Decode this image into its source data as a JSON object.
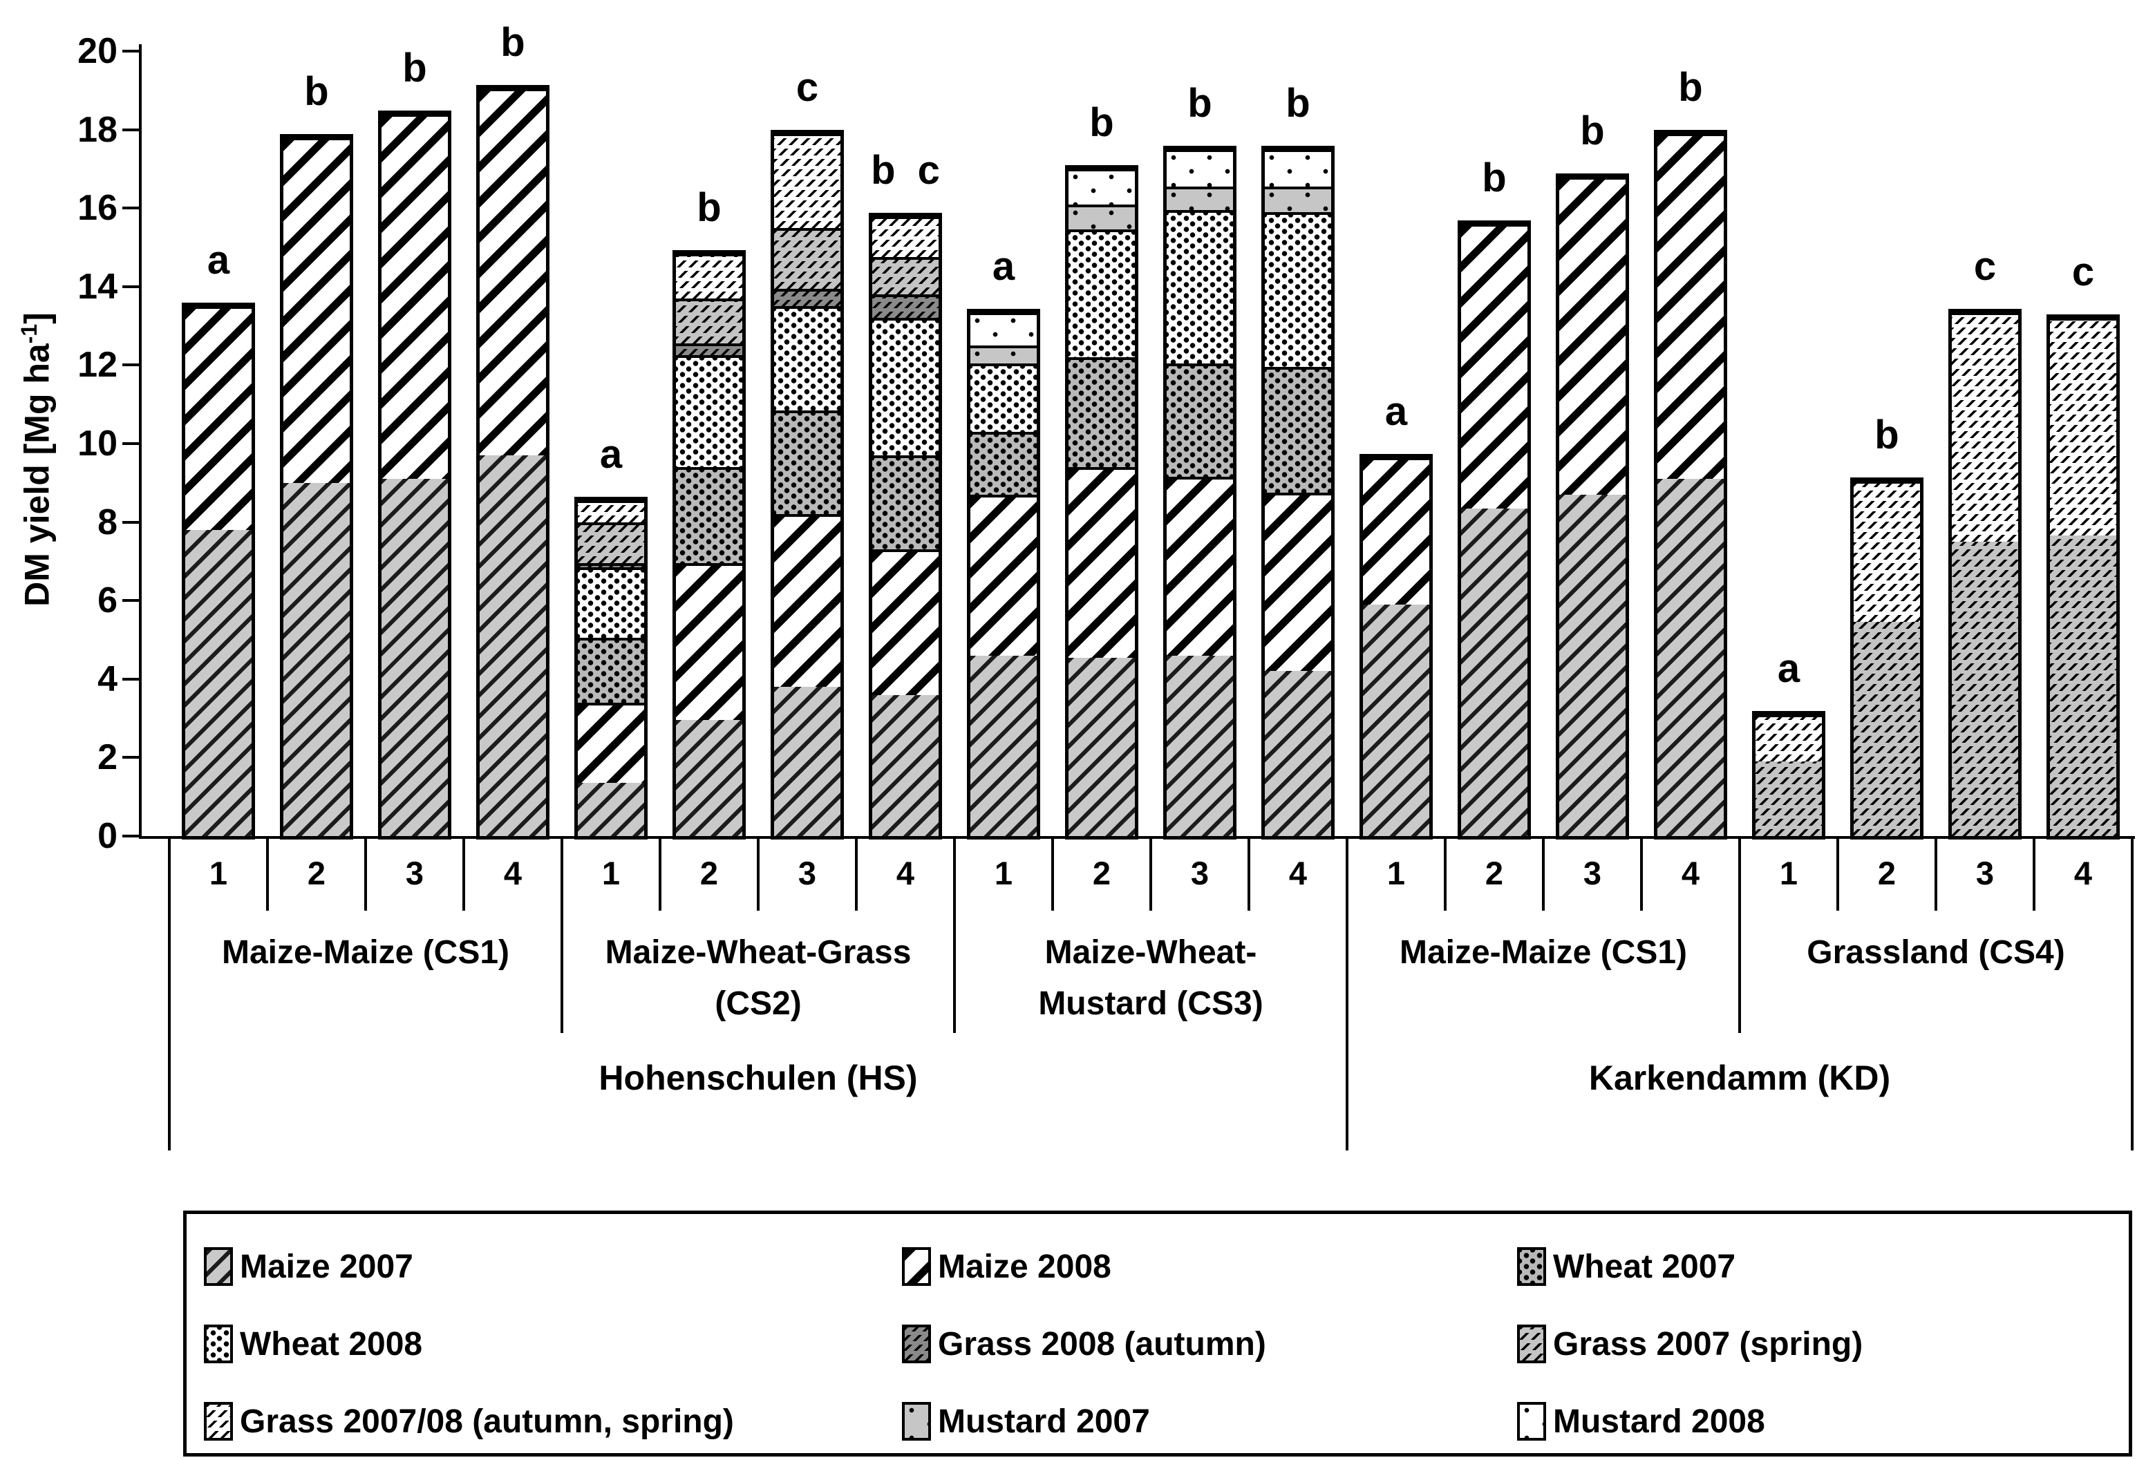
{
  "y_axis": {
    "title_main": "DM yield [Mg ha",
    "title_sup": "-1",
    "title_end": "]",
    "min": 0,
    "max": 20,
    "tick_step": 2,
    "ticks": [
      0,
      2,
      4,
      6,
      8,
      10,
      12,
      14,
      16,
      18,
      20
    ]
  },
  "x_axis": {
    "n_levels": [
      "1",
      "2",
      "3",
      "4"
    ],
    "sites": [
      {
        "label": "Hohenschulen (HS)",
        "group_indexes": [
          0,
          1,
          2
        ]
      },
      {
        "label": "Karkendamm (KD)",
        "group_indexes": [
          3,
          4
        ]
      }
    ]
  },
  "series_legend": [
    {
      "key": "maize2007",
      "label": "Maize 2007"
    },
    {
      "key": "maize2008",
      "label": "Maize 2008"
    },
    {
      "key": "wheat2007",
      "label": "Wheat 2007"
    },
    {
      "key": "wheat2008",
      "label": "Wheat 2008"
    },
    {
      "key": "grass2008autumn",
      "label": "Grass 2008 (autumn)"
    },
    {
      "key": "grass2007spring",
      "label": "Grass 2007 (spring)"
    },
    {
      "key": "grass200708",
      "label": "Grass 2007/08 (autumn, spring)"
    },
    {
      "key": "mustard2007",
      "label": "Mustard 2007"
    },
    {
      "key": "mustard2008",
      "label": "Mustard 2008"
    }
  ],
  "colors": {
    "bar_outline": "#000000",
    "gray_fill": "#c9c9c9",
    "mid_gray_fill": "#c4c4c4",
    "dark_gray_fill": "#8a8a8a",
    "background": "#ffffff"
  },
  "chart_data": {
    "type": "bar",
    "stacked": true,
    "title": "",
    "xlabel": "",
    "ylabel": "DM yield [Mg ha-1]",
    "ylim": [
      0,
      20
    ],
    "grid": false,
    "legend_position": "bottom",
    "groups": [
      {
        "id": "HS-CS1",
        "label_lines": [
          "Maize-Maize (CS1)"
        ],
        "site": "Hohenschulen (HS)",
        "bars": [
          {
            "n": "1",
            "letter": "a",
            "total": 13.5,
            "segments": [
              {
                "series": "maize2007",
                "value": 7.8
              },
              {
                "series": "maize2008",
                "value": 5.7
              }
            ]
          },
          {
            "n": "2",
            "letter": "b",
            "total": 17.8,
            "segments": [
              {
                "series": "maize2007",
                "value": 9.0
              },
              {
                "series": "maize2008",
                "value": 8.8
              }
            ]
          },
          {
            "n": "3",
            "letter": "b",
            "total": 18.4,
            "segments": [
              {
                "series": "maize2007",
                "value": 9.1
              },
              {
                "series": "maize2008",
                "value": 9.3
              }
            ]
          },
          {
            "n": "4",
            "letter": "b",
            "total": 19.05,
            "segments": [
              {
                "series": "maize2007",
                "value": 9.7
              },
              {
                "series": "maize2008",
                "value": 9.35
              }
            ]
          }
        ]
      },
      {
        "id": "HS-CS2",
        "label_lines": [
          "Maize-Wheat-Grass",
          "(CS2)"
        ],
        "site": "Hohenschulen (HS)",
        "bars": [
          {
            "n": "1",
            "letter": "a",
            "total": 8.55,
            "segments": [
              {
                "series": "maize2007",
                "value": 1.35
              },
              {
                "series": "maize2008",
                "value": 2.05
              },
              {
                "series": "wheat2007",
                "value": 1.65
              },
              {
                "series": "wheat2008",
                "value": 1.8
              },
              {
                "series": "grass2008autumn",
                "value": 0.1
              },
              {
                "series": "grass2007spring",
                "value": 1.05
              },
              {
                "series": "grass200708",
                "value": 0.55
              }
            ]
          },
          {
            "n": "2",
            "letter": "b",
            "total": 14.85,
            "segments": [
              {
                "series": "maize2007",
                "value": 2.95
              },
              {
                "series": "maize2008",
                "value": 4.0
              },
              {
                "series": "wheat2007",
                "value": 2.45
              },
              {
                "series": "wheat2008",
                "value": 2.85
              },
              {
                "series": "grass2008autumn",
                "value": 0.3
              },
              {
                "series": "grass2007spring",
                "value": 1.15
              },
              {
                "series": "grass200708",
                "value": 1.15
              }
            ]
          },
          {
            "n": "3",
            "letter": "c",
            "total": 17.9,
            "segments": [
              {
                "series": "maize2007",
                "value": 3.8
              },
              {
                "series": "maize2008",
                "value": 4.4
              },
              {
                "series": "wheat2007",
                "value": 2.65
              },
              {
                "series": "wheat2008",
                "value": 2.65
              },
              {
                "series": "grass2008autumn",
                "value": 0.45
              },
              {
                "series": "grass2007spring",
                "value": 1.55
              },
              {
                "series": "grass200708",
                "value": 2.4
              }
            ]
          },
          {
            "n": "4",
            "letter": "b c",
            "total": 15.8,
            "segments": [
              {
                "series": "maize2007",
                "value": 3.6
              },
              {
                "series": "maize2008",
                "value": 3.7
              },
              {
                "series": "wheat2007",
                "value": 2.4
              },
              {
                "series": "wheat2008",
                "value": 3.5
              },
              {
                "series": "grass2008autumn",
                "value": 0.6
              },
              {
                "series": "grass2007spring",
                "value": 0.95
              },
              {
                "series": "grass200708",
                "value": 1.05
              }
            ]
          }
        ]
      },
      {
        "id": "HS-CS3",
        "label_lines": [
          "Maize-Wheat-",
          "Mustard (CS3)"
        ],
        "site": "Hohenschulen (HS)",
        "bars": [
          {
            "n": "1",
            "letter": "a",
            "total": 13.35,
            "segments": [
              {
                "series": "maize2007",
                "value": 4.6
              },
              {
                "series": "maize2008",
                "value": 4.1
              },
              {
                "series": "wheat2007",
                "value": 1.6
              },
              {
                "series": "wheat2008",
                "value": 1.75
              },
              {
                "series": "mustard2007",
                "value": 0.45
              },
              {
                "series": "mustard2008",
                "value": 0.85
              }
            ]
          },
          {
            "n": "2",
            "letter": "b",
            "total": 17.0,
            "segments": [
              {
                "series": "maize2007",
                "value": 4.55
              },
              {
                "series": "maize2008",
                "value": 4.85
              },
              {
                "series": "wheat2007",
                "value": 2.8
              },
              {
                "series": "wheat2008",
                "value": 3.25
              },
              {
                "series": "mustard2007",
                "value": 0.65
              },
              {
                "series": "mustard2008",
                "value": 0.9
              }
            ]
          },
          {
            "n": "3",
            "letter": "b",
            "total": 17.5,
            "segments": [
              {
                "series": "maize2007",
                "value": 4.6
              },
              {
                "series": "maize2008",
                "value": 4.55
              },
              {
                "series": "wheat2007",
                "value": 2.9
              },
              {
                "series": "wheat2008",
                "value": 3.9
              },
              {
                "series": "mustard2007",
                "value": 0.6
              },
              {
                "series": "mustard2008",
                "value": 0.95
              }
            ]
          },
          {
            "n": "4",
            "letter": "b",
            "total": 17.5,
            "segments": [
              {
                "series": "maize2007",
                "value": 4.2
              },
              {
                "series": "maize2008",
                "value": 4.55
              },
              {
                "series": "wheat2007",
                "value": 3.2
              },
              {
                "series": "wheat2008",
                "value": 3.95
              },
              {
                "series": "mustard2007",
                "value": 0.65
              },
              {
                "series": "mustard2008",
                "value": 0.95
              }
            ]
          }
        ]
      },
      {
        "id": "KD-CS1",
        "label_lines": [
          "Maize-Maize (CS1)"
        ],
        "site": "Karkendamm (KD)",
        "bars": [
          {
            "n": "1",
            "letter": "a",
            "total": 9.65,
            "segments": [
              {
                "series": "maize2007",
                "value": 5.9
              },
              {
                "series": "maize2008",
                "value": 3.75
              }
            ]
          },
          {
            "n": "2",
            "letter": "b",
            "total": 15.6,
            "segments": [
              {
                "series": "maize2007",
                "value": 8.35
              },
              {
                "series": "maize2008",
                "value": 7.25
              }
            ]
          },
          {
            "n": "3",
            "letter": "b",
            "total": 16.8,
            "segments": [
              {
                "series": "maize2007",
                "value": 8.7
              },
              {
                "series": "maize2008",
                "value": 8.1
              }
            ]
          },
          {
            "n": "4",
            "letter": "b",
            "total": 17.9,
            "segments": [
              {
                "series": "maize2007",
                "value": 9.1
              },
              {
                "series": "maize2008",
                "value": 8.8
              }
            ]
          }
        ]
      },
      {
        "id": "KD-CS4",
        "label_lines": [
          "Grassland (CS4)"
        ],
        "site": "Karkendamm (KD)",
        "bars": [
          {
            "n": "1",
            "letter": "a",
            "total": 3.1,
            "segments": [
              {
                "series": "grass2007spring",
                "value": 1.9
              },
              {
                "series": "grass200708",
                "value": 1.2
              }
            ]
          },
          {
            "n": "2",
            "letter": "b",
            "total": 9.05,
            "segments": [
              {
                "series": "grass2007spring",
                "value": 5.45
              },
              {
                "series": "grass200708",
                "value": 3.6
              }
            ]
          },
          {
            "n": "3",
            "letter": "c",
            "total": 13.35,
            "segments": [
              {
                "series": "grass2007spring",
                "value": 7.5
              },
              {
                "series": "grass200708",
                "value": 5.85
              }
            ]
          },
          {
            "n": "4",
            "letter": "c",
            "total": 13.2,
            "segments": [
              {
                "series": "grass2007spring",
                "value": 7.65
              },
              {
                "series": "grass200708",
                "value": 5.55
              }
            ]
          }
        ]
      }
    ]
  }
}
